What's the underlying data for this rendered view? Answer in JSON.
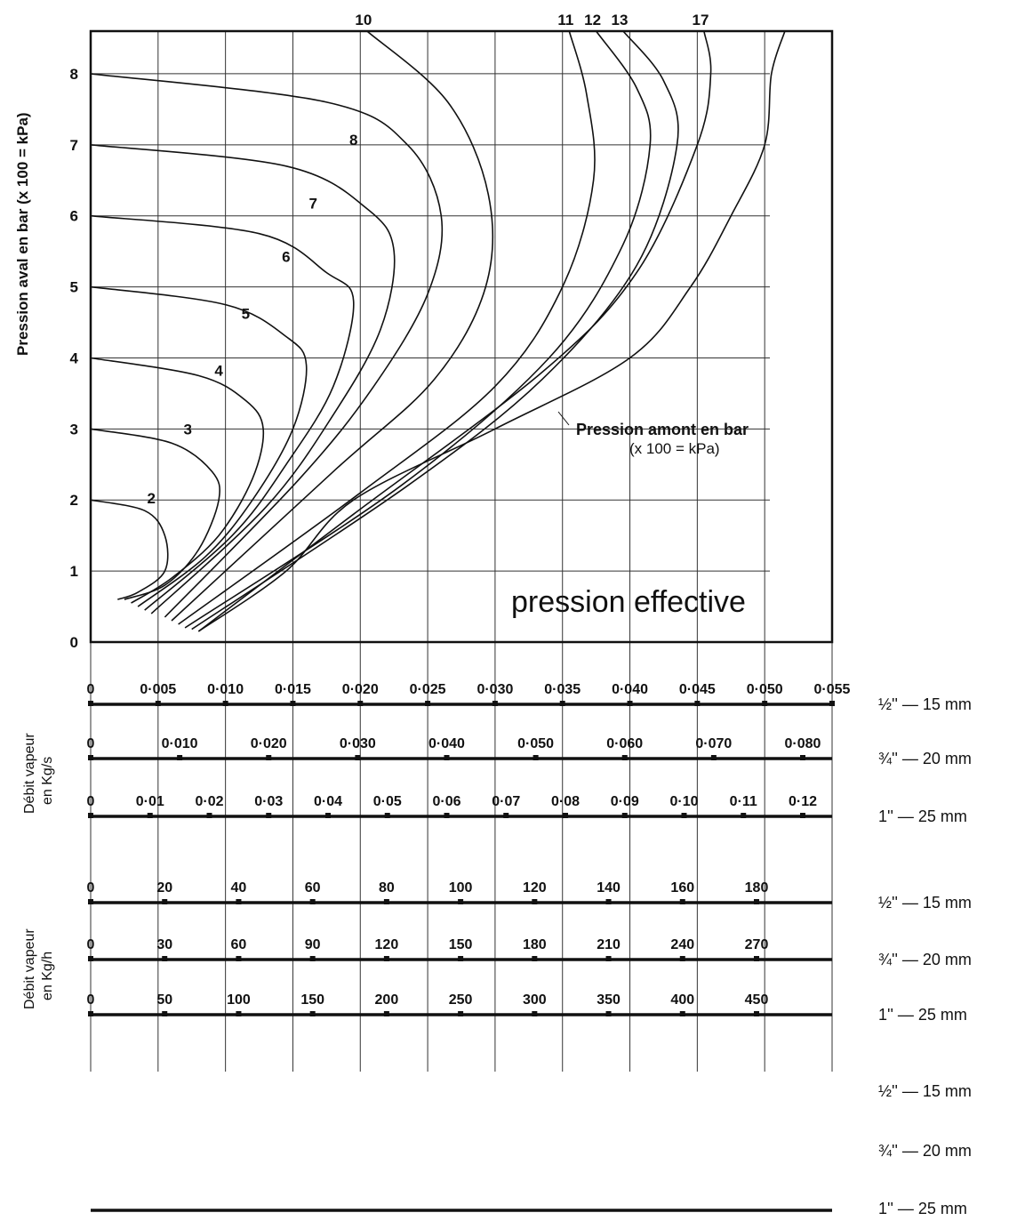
{
  "chart_data": {
    "type": "line",
    "x_axis": {
      "ticks": [
        "0",
        "0·005",
        "0·010",
        "0·015",
        "0·020",
        "0·025",
        "0·030",
        "0·035",
        "0·040",
        "0·045",
        "0·050",
        "0·055"
      ],
      "xlim": [
        0,
        0.055
      ]
    },
    "y_axis": {
      "label": "Pression aval en bar (x 100 = kPa)",
      "ticks": [
        "0",
        "1",
        "2",
        "3",
        "4",
        "5",
        "6",
        "7",
        "8"
      ],
      "ylim": [
        0,
        8.6
      ]
    },
    "grid": true,
    "annotation_main": "pression effective",
    "annotation_curve_title": "Pression amont en bar",
    "annotation_curve_unit": "(x 100 = kPa)",
    "series": [
      {
        "name": "2",
        "points": [
          [
            0,
            2
          ],
          [
            0.004,
            1.85
          ],
          [
            0.0055,
            1.5
          ],
          [
            0.0055,
            1.0
          ],
          [
            0.0035,
            0.7
          ],
          [
            0.002,
            0.6
          ]
        ]
      },
      {
        "name": "3",
        "points": [
          [
            0,
            3
          ],
          [
            0.006,
            2.8
          ],
          [
            0.009,
            2.4
          ],
          [
            0.0095,
            2.0
          ],
          [
            0.008,
            1.3
          ],
          [
            0.0055,
            0.8
          ],
          [
            0.0025,
            0.6
          ]
        ]
      },
      {
        "name": "4",
        "points": [
          [
            0,
            4
          ],
          [
            0.008,
            3.75
          ],
          [
            0.0115,
            3.4
          ],
          [
            0.0128,
            3.0
          ],
          [
            0.012,
            2.3
          ],
          [
            0.0095,
            1.5
          ],
          [
            0.006,
            0.9
          ],
          [
            0.003,
            0.55
          ]
        ]
      },
      {
        "name": "5",
        "points": [
          [
            0,
            5
          ],
          [
            0.01,
            4.75
          ],
          [
            0.0145,
            4.3
          ],
          [
            0.016,
            3.9
          ],
          [
            0.015,
            3.0
          ],
          [
            0.012,
            2.0
          ],
          [
            0.0085,
            1.2
          ],
          [
            0.0035,
            0.5
          ]
        ]
      },
      {
        "name": "6",
        "points": [
          [
            0,
            6
          ],
          [
            0.0125,
            5.75
          ],
          [
            0.0175,
            5.2
          ],
          [
            0.0195,
            4.8
          ],
          [
            0.018,
            3.6
          ],
          [
            0.0145,
            2.5
          ],
          [
            0.0105,
            1.5
          ],
          [
            0.004,
            0.45
          ]
        ]
      },
      {
        "name": "7",
        "points": [
          [
            0,
            7
          ],
          [
            0.0145,
            6.7
          ],
          [
            0.0205,
            6.1
          ],
          [
            0.0225,
            5.5
          ],
          [
            0.0215,
            4.4
          ],
          [
            0.018,
            3.2
          ],
          [
            0.013,
            1.9
          ],
          [
            0.0045,
            0.4
          ]
        ]
      },
      {
        "name": "8",
        "points": [
          [
            0,
            8
          ],
          [
            0.0175,
            7.6
          ],
          [
            0.0235,
            7.0
          ],
          [
            0.026,
            6.0
          ],
          [
            0.025,
            4.9
          ],
          [
            0.021,
            3.6
          ],
          [
            0.0155,
            2.3
          ],
          [
            0.0055,
            0.35
          ]
        ]
      },
      {
        "name": "10",
        "points": [
          [
            0.0205,
            8.6
          ],
          [
            0.0265,
            7.6
          ],
          [
            0.0295,
            6.3
          ],
          [
            0.0293,
            5.0
          ],
          [
            0.0255,
            3.7
          ],
          [
            0.018,
            2.4
          ],
          [
            0.006,
            0.3
          ]
        ]
      },
      {
        "name": "11",
        "points": [
          [
            0.0355,
            8.6
          ],
          [
            0.0368,
            7.7
          ],
          [
            0.0373,
            6.5
          ],
          [
            0.035,
            5.0
          ],
          [
            0.03,
            3.6
          ],
          [
            0.02,
            2.1
          ],
          [
            0.0065,
            0.25
          ]
        ]
      },
      {
        "name": "12",
        "points": [
          [
            0.0375,
            8.6
          ],
          [
            0.0405,
            7.8
          ],
          [
            0.0415,
            7.0
          ],
          [
            0.0395,
            5.6
          ],
          [
            0.034,
            4.0
          ],
          [
            0.023,
            2.2
          ],
          [
            0.007,
            0.2
          ]
        ]
      },
      {
        "name": "13",
        "points": [
          [
            0.0395,
            8.6
          ],
          [
            0.0425,
            7.9
          ],
          [
            0.0435,
            7.0
          ],
          [
            0.0405,
            5.3
          ],
          [
            0.0335,
            3.7
          ],
          [
            0.0235,
            2.2
          ],
          [
            0.0075,
            0.18
          ]
        ]
      },
      {
        "name": "17",
        "points": [
          [
            0.0455,
            8.6
          ],
          [
            0.046,
            8.0
          ],
          [
            0.045,
            7.0
          ],
          [
            0.0405,
            5.2
          ],
          [
            0.0335,
            3.8
          ],
          [
            0.0195,
            1.8
          ],
          [
            0.008,
            0.15
          ]
        ]
      }
    ],
    "envelope": [
      [
        0.008,
        0.15
      ],
      [
        0.0145,
        1.0
      ],
      [
        0.0195,
        2.0
      ],
      [
        0.03,
        3.0
      ],
      [
        0.04,
        4.0
      ],
      [
        0.0445,
        5.0
      ],
      [
        0.0475,
        6.0
      ],
      [
        0.05,
        7.0
      ],
      [
        0.0505,
        8.0
      ],
      [
        0.0515,
        8.6
      ]
    ]
  },
  "scale_groups": [
    {
      "title_line1": "Débit vapeur",
      "title_line2": "en Kg/s",
      "rows": [
        {
          "pipe": "½'' — 15 mm",
          "labels": [
            "0",
            "0·005",
            "0·010",
            "0·015",
            "0·020",
            "0·025",
            "0·030",
            "0·035",
            "0·040",
            "0·045",
            "0·050",
            "0·055"
          ]
        },
        {
          "pipe": "¾'' — 20 mm",
          "labels": [
            "0",
            "0·010",
            "0·020",
            "0·030",
            "0·040",
            "0·050",
            "0·060",
            "0·070",
            "0·080"
          ]
        },
        {
          "pipe": "1'' — 25 mm",
          "labels": [
            "0",
            "0·01",
            "0·02",
            "0·03",
            "0·04",
            "0·05",
            "0·06",
            "0·07",
            "0·08",
            "0·09",
            "0·10",
            "0·11",
            "0·12"
          ]
        }
      ]
    },
    {
      "title_line1": "Débit vapeur",
      "title_line2": "en Kg/h",
      "rows": [
        {
          "pipe": "½'' — 15 mm",
          "labels": [
            "0",
            "20",
            "40",
            "60",
            "80",
            "100",
            "120",
            "140",
            "160",
            "180"
          ]
        },
        {
          "pipe": "¾'' — 20 mm",
          "labels": [
            "0",
            "30",
            "60",
            "90",
            "120",
            "150",
            "180",
            "210",
            "240",
            "270"
          ]
        },
        {
          "pipe": "1'' — 25 mm",
          "labels": [
            "0",
            "50",
            "100",
            "150",
            "200",
            "250",
            "300",
            "350",
            "400",
            "450"
          ]
        }
      ]
    }
  ],
  "extra_pipes": [
    "½'' — 15 mm",
    "¾'' — 20 mm",
    "1'' — 25 mm"
  ]
}
